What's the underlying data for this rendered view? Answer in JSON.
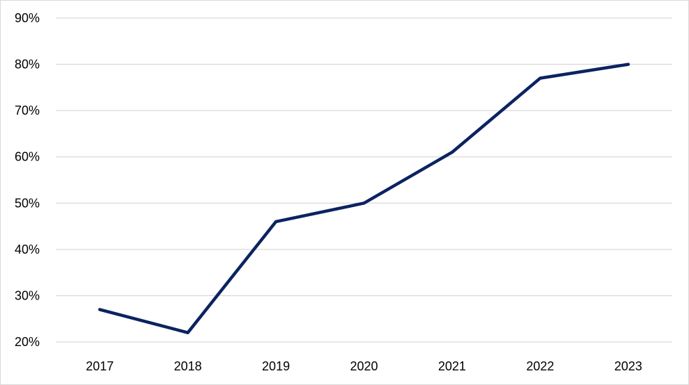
{
  "chart_data": {
    "type": "line",
    "title": "",
    "xlabel": "",
    "ylabel": "",
    "categories": [
      "2017",
      "2018",
      "2019",
      "2020",
      "2021",
      "2022",
      "2023"
    ],
    "series": [
      {
        "values": [
          27,
          22,
          46,
          50,
          61,
          77,
          80
        ],
        "color": "#0b2361"
      }
    ],
    "ylim": [
      20,
      90
    ],
    "y_ticks": [
      20,
      30,
      40,
      50,
      60,
      70,
      80,
      90
    ],
    "y_tick_labels": [
      "20%",
      "30%",
      "40%",
      "50%",
      "60%",
      "70%",
      "80%",
      "90%"
    ],
    "grid": true,
    "gridline_color": "#d9d9d9",
    "legend": "none"
  }
}
